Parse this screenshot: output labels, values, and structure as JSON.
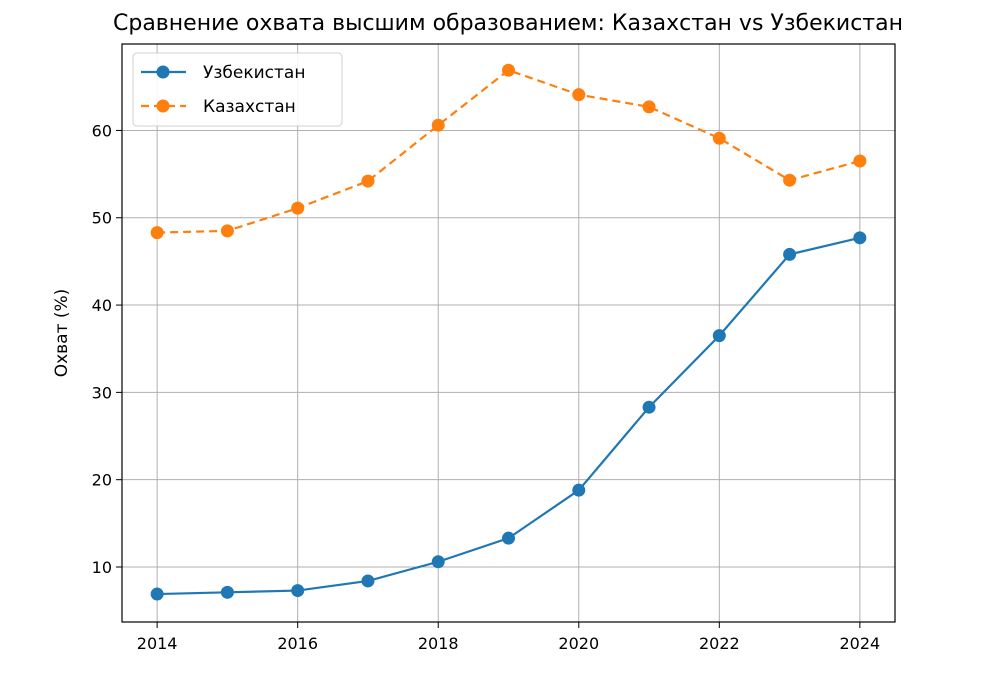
{
  "chart_data": {
    "type": "line",
    "title": "Сравнение охвата высшим образованием: Казахстан vs Узбекистан",
    "xlabel": "",
    "ylabel": "Охват (%)",
    "x": [
      2014,
      2015,
      2016,
      2017,
      2018,
      2019,
      2020,
      2021,
      2022,
      2023,
      2024
    ],
    "xlim": [
      2013.5,
      2024.5
    ],
    "ylim": [
      3.7,
      69.9
    ],
    "xticks": [
      2014,
      2016,
      2018,
      2020,
      2022,
      2024
    ],
    "yticks": [
      10,
      20,
      30,
      40,
      50,
      60
    ],
    "grid": true,
    "legend_position": "top-left",
    "series": [
      {
        "name": "Узбекистан",
        "color": "#1f77b4",
        "linestyle": "solid",
        "marker": "circle",
        "values": [
          6.9,
          7.1,
          7.3,
          8.4,
          10.6,
          13.3,
          18.8,
          28.3,
          36.5,
          45.8,
          47.7
        ]
      },
      {
        "name": "Казахстан",
        "color": "#ff7f0e",
        "linestyle": "dashed",
        "marker": "circle",
        "values": [
          48.3,
          48.5,
          51.1,
          54.2,
          60.6,
          66.9,
          64.1,
          62.7,
          59.1,
          54.3,
          56.5
        ]
      }
    ]
  }
}
